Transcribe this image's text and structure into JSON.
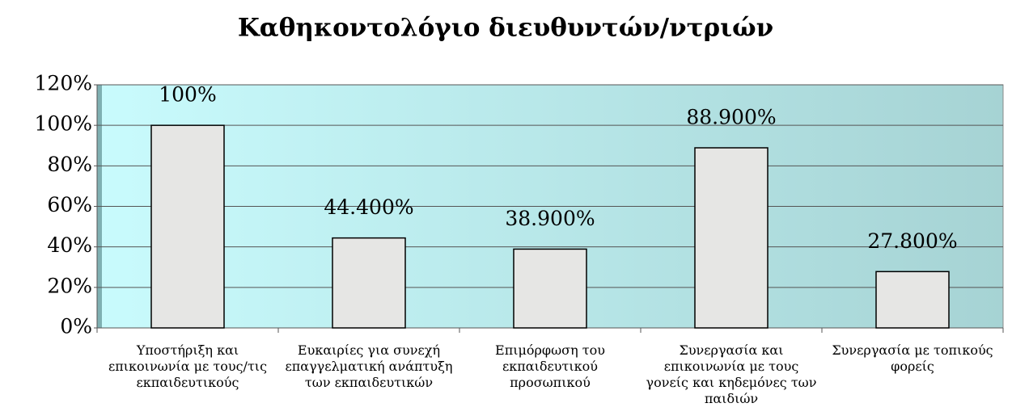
{
  "chart_data": {
    "type": "bar",
    "title": "Καθηκοντολόγιο διευθυντών/ντριών",
    "categories": [
      "Υποστήριξη και επικοινωνία με τους/τις εκπαιδευτικούς",
      "Ευκαιρίες για συνεχή επαγγελματική ανάπτυξη των εκπαιδευτικών",
      "Επιμόρφωση του εκπαιδευτικού προσωπικού",
      "Συνεργασία και επικοινωνία με τους γονείς και κηδεμόνες των παιδιών",
      "Συνεργασία με τοπικούς φορείς"
    ],
    "values": [
      100,
      44.4,
      38.9,
      88.9,
      27.8
    ],
    "value_labels": [
      "100%",
      "44.400%",
      "38.900%",
      "88.900%",
      "27.800%"
    ],
    "color": "#e6e6e4",
    "ylim": [
      0,
      120
    ],
    "yticks": [
      {
        "value": 0,
        "label": "0%"
      },
      {
        "value": 20,
        "label": "20%"
      },
      {
        "value": 40,
        "label": "40%"
      },
      {
        "value": 60,
        "label": "60%"
      },
      {
        "value": 80,
        "label": "80%"
      },
      {
        "value": 100,
        "label": "100%"
      },
      {
        "value": 120,
        "label": "120%"
      }
    ],
    "grid": true
  }
}
